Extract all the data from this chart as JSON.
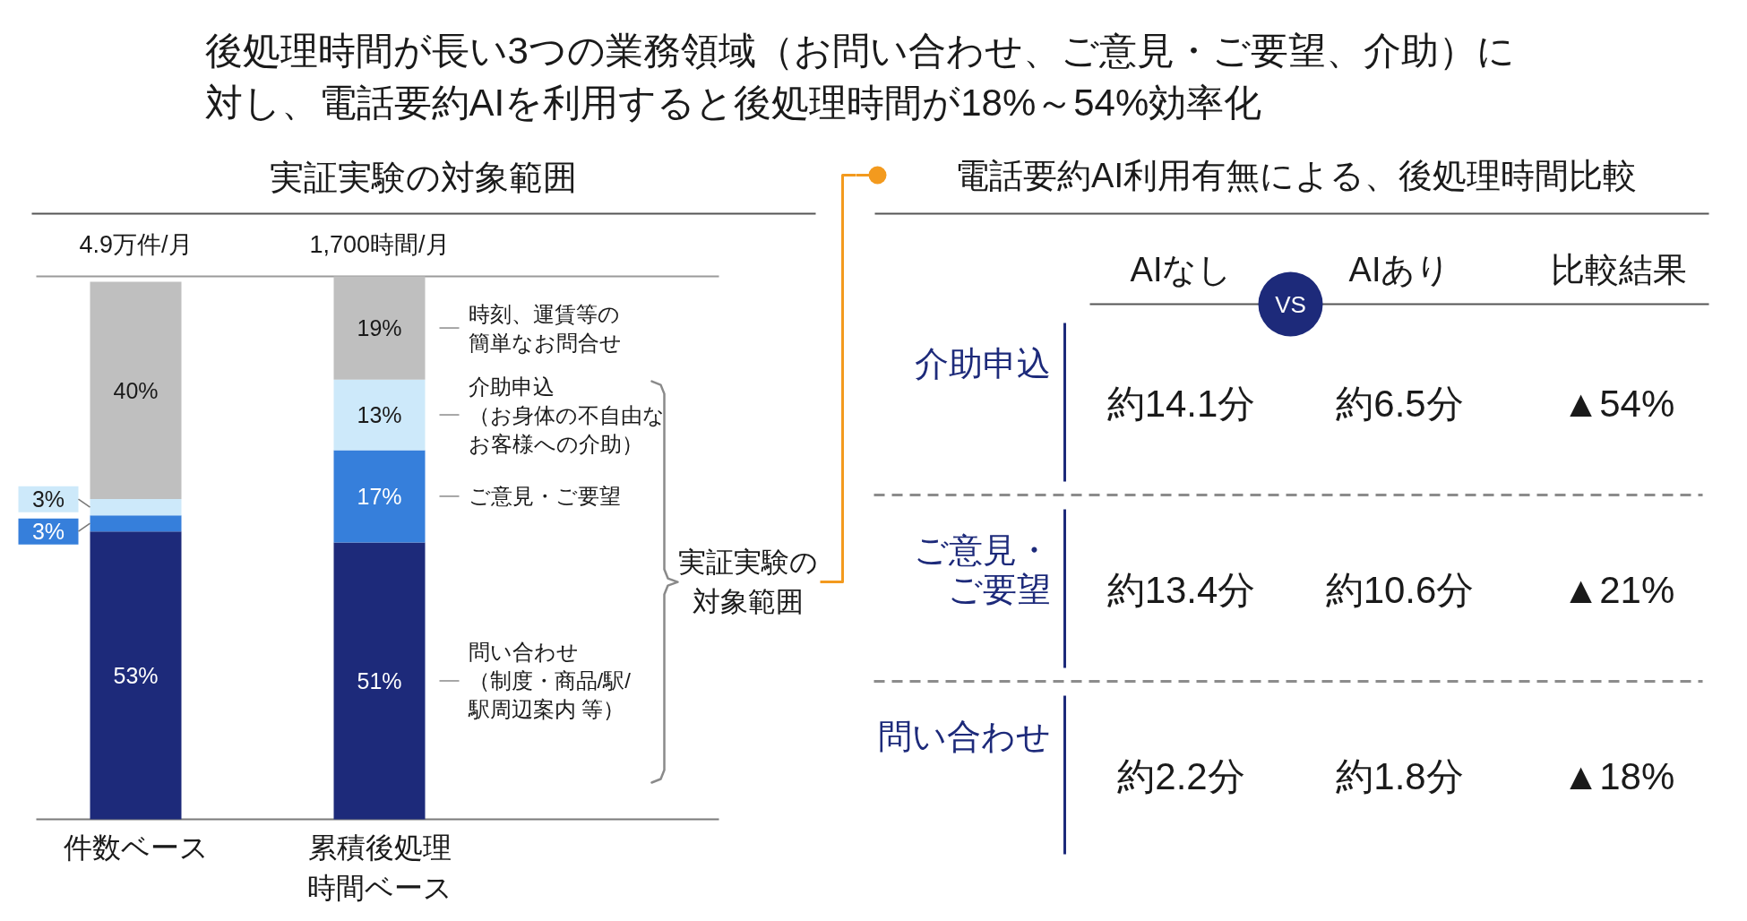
{
  "chart_data": [
    {
      "type": "bar",
      "title": "後処理時間が長い3つの業務領域（お問い合わせ、ご意見・ご要望、介助）に対し、電話要約AIを利用すると後処理時間が18%～54%効率化",
      "subtitle": "実証実験の対象範囲",
      "categories": [
        "件数ベース",
        "累積後処理時間ベース"
      ],
      "stacked": true,
      "series": [
        {
          "name": "問い合わせ（制度・商品/駅/駅周辺案内 等）",
          "color": "#1d2a7a",
          "values": [
            53,
            51
          ],
          "value_labels": [
            "53%",
            "51%"
          ]
        },
        {
          "name": "ご意見・ご要望",
          "color": "#367fdb",
          "values": [
            3,
            17
          ],
          "value_labels": [
            "3%",
            "17%"
          ]
        },
        {
          "name": "介助申込（お身体の不自由なお客様への介助）",
          "color": "#cde9fa",
          "values": [
            3,
            13
          ],
          "value_labels": [
            "3%",
            "13%"
          ]
        },
        {
          "name": "時刻、運賃等の簡単なお問合せ",
          "color": "#bfbfbf",
          "values": [
            40,
            19
          ],
          "value_labels": [
            "40%",
            "19%"
          ]
        }
      ],
      "annotations": [
        "4.9万件/月",
        "1,700時間/月",
        "実証実験の対象範囲"
      ],
      "tick_labels": "x"
    },
    {
      "type": "other",
      "title": "電話要約AI利用有無による、後処理時間比較",
      "categories": [
        "AIなし",
        "AIあり",
        "比較結果"
      ],
      "y_categories": [
        "介助申込",
        "ご意見・ご要望",
        "問い合わせ"
      ],
      "cell_labels": [
        [
          "約14.1分",
          "約6.5分",
          "▲54%"
        ],
        [
          "約13.4分",
          "約10.6分",
          "▲21%"
        ],
        [
          "約2.2分",
          "約1.8分",
          "▲18%"
        ]
      ],
      "annotations": [
        "VS"
      ]
    }
  ]
}
